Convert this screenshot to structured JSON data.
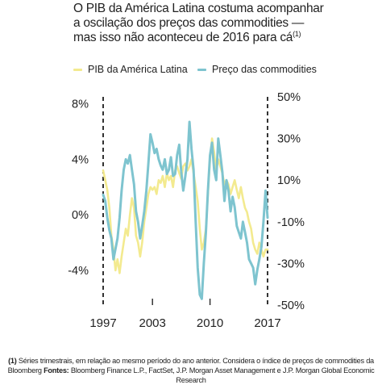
{
  "title": {
    "line1": "O PIB da América Latina costuma acompanhar",
    "line2": "a oscilação dos preços das commodities —",
    "line3": "mas isso não aconteceu de 2016 para cá",
    "footnote_marker": "(1)"
  },
  "footer": {
    "note_marker": "(1)",
    "note_line1": "Séries trimestrais, em relação ao mesmo período do ano anterior. Considera o índice de preços de commodities da",
    "note_line2_start": "Bloomberg",
    "sources_label": "Fontes:",
    "sources_text": "Bloomberg Finance L.P., FactSet, J.P. Morgan Asset Management e J.P. Morgan Global Economic Research"
  },
  "chart_data": {
    "type": "line",
    "x_tick_labels": [
      "1997",
      "2003",
      "2010",
      "2017"
    ],
    "x_range": [
      1997,
      2017
    ],
    "left_axis": {
      "tick_labels": [
        "8%",
        "4%",
        "0%",
        "-4%"
      ],
      "ylim": [
        -6.5,
        8.5
      ]
    },
    "right_axis": {
      "tick_labels": [
        "50%",
        "30%",
        "10%",
        "-10%",
        "-30%",
        "-50%"
      ],
      "ylim": [
        -50,
        50
      ]
    },
    "series": [
      {
        "name": "PIB da América Latina",
        "axis": "left",
        "color": "#f3ea8f",
        "x": [
          1997.0,
          1997.25,
          1997.5,
          1997.75,
          1998.0,
          1998.25,
          1998.5,
          1998.75,
          1999.0,
          1999.25,
          1999.5,
          1999.75,
          2000.0,
          2000.25,
          2000.5,
          2000.75,
          2001.0,
          2001.25,
          2001.5,
          2001.75,
          2002.0,
          2002.25,
          2002.5,
          2002.75,
          2003.0,
          2003.25,
          2003.5,
          2003.75,
          2004.0,
          2004.25,
          2004.5,
          2004.75,
          2005.0,
          2005.25,
          2005.5,
          2005.75,
          2006.0,
          2006.25,
          2006.5,
          2006.75,
          2007.0,
          2007.25,
          2007.5,
          2007.75,
          2008.0,
          2008.25,
          2008.5,
          2008.75,
          2009.0,
          2009.25,
          2009.5,
          2009.75,
          2010.0,
          2010.25,
          2010.5,
          2010.75,
          2011.0,
          2011.25,
          2011.5,
          2011.75,
          2012.0,
          2012.25,
          2012.5,
          2012.75,
          2013.0,
          2013.25,
          2013.5,
          2013.75,
          2014.0,
          2014.25,
          2014.5,
          2014.75,
          2015.0,
          2015.25,
          2015.5,
          2015.75,
          2016.0,
          2016.25,
          2016.5,
          2016.75,
          2017.0
        ],
        "values": [
          3.2,
          2.5,
          1.8,
          0.5,
          -1.5,
          -2.5,
          -4.0,
          -3.2,
          -4.2,
          -3.0,
          -2.0,
          -1.0,
          -1.5,
          0.0,
          1.2,
          0.5,
          -1.5,
          -2.0,
          -3.0,
          -2.0,
          -0.5,
          0.5,
          1.5,
          2.0,
          1.8,
          2.0,
          1.5,
          2.5,
          2.3,
          2.8,
          2.0,
          3.0,
          2.5,
          2.8,
          2.0,
          3.2,
          3.5,
          3.0,
          2.6,
          3.5,
          3.7,
          3.2,
          3.5,
          4.0,
          3.0,
          2.0,
          1.0,
          -1.0,
          -2.5,
          -2.0,
          -1.0,
          1.5,
          4.0,
          5.5,
          4.5,
          3.2,
          4.0,
          3.5,
          3.0,
          2.2,
          2.5,
          2.2,
          1.5,
          2.0,
          2.5,
          1.8,
          1.2,
          2.0,
          1.2,
          0.5,
          0.2,
          -0.5,
          -1.0,
          -2.0,
          -2.5,
          -2.8,
          -2.0,
          -2.5,
          -3.0,
          -2.5,
          -2.5
        ]
      },
      {
        "name": "Preço das commodities",
        "axis": "right",
        "color": "#7ec4cf",
        "x": [
          1997.0,
          1997.25,
          1997.5,
          1997.75,
          1998.0,
          1998.25,
          1998.5,
          1998.75,
          1999.0,
          1999.25,
          1999.5,
          1999.75,
          2000.0,
          2000.25,
          2000.5,
          2000.75,
          2001.0,
          2001.25,
          2001.5,
          2001.75,
          2002.0,
          2002.25,
          2002.5,
          2002.75,
          2003.0,
          2003.25,
          2003.5,
          2003.75,
          2004.0,
          2004.25,
          2004.5,
          2004.75,
          2005.0,
          2005.25,
          2005.5,
          2005.75,
          2006.0,
          2006.25,
          2006.5,
          2006.75,
          2007.0,
          2007.25,
          2007.5,
          2007.75,
          2008.0,
          2008.25,
          2008.5,
          2008.75,
          2009.0,
          2009.25,
          2009.5,
          2009.75,
          2010.0,
          2010.25,
          2010.5,
          2010.75,
          2011.0,
          2011.25,
          2011.5,
          2011.75,
          2012.0,
          2012.25,
          2012.5,
          2012.75,
          2013.0,
          2013.25,
          2013.5,
          2013.75,
          2014.0,
          2014.25,
          2014.5,
          2014.75,
          2015.0,
          2015.25,
          2015.5,
          2015.75,
          2016.0,
          2016.25,
          2016.5,
          2016.75,
          2017.0
        ],
        "values": [
          3.0,
          0.0,
          -8.0,
          -14.0,
          -18.0,
          -28.0,
          -23.0,
          -18.0,
          -8.0,
          5.0,
          15.0,
          20.0,
          18.0,
          22.0,
          15.0,
          8.0,
          -5.0,
          -10.0,
          -18.0,
          -12.0,
          -5.0,
          5.0,
          18.0,
          32.0,
          28.0,
          23.0,
          25.0,
          20.0,
          17.0,
          15.0,
          20.0,
          13.0,
          15.0,
          21.0,
          12.0,
          13.0,
          22.0,
          27.0,
          14.0,
          5.0,
          12.0,
          20.0,
          38.0,
          25.0,
          15.0,
          -10.0,
          -32.0,
          -45.0,
          -47.0,
          -30.0,
          -15.0,
          5.0,
          22.0,
          28.0,
          15.0,
          10.0,
          30.0,
          22.0,
          14.0,
          0.0,
          10.0,
          5.0,
          -5.0,
          2.0,
          -3.0,
          -12.0,
          -15.0,
          -18.0,
          -10.0,
          -15.0,
          -20.0,
          -28.0,
          -30.0,
          -32.0,
          -40.0,
          -33.0,
          -28.0,
          -22.0,
          -10.0,
          5.0,
          -8.0
        ]
      }
    ]
  }
}
